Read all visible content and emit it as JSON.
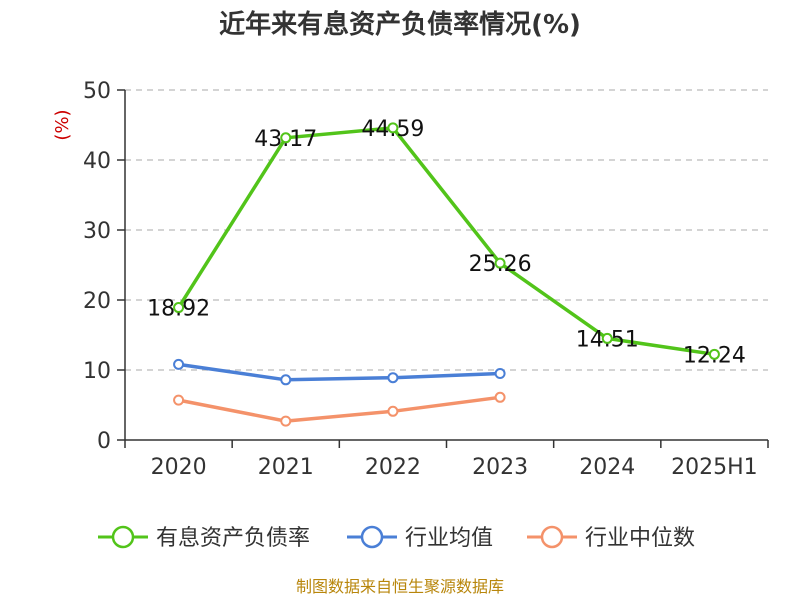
{
  "chart_data": {
    "type": "line",
    "title": "近年来有息资产负债率情况(%)",
    "unit_label": "(%)",
    "categories": [
      "2020",
      "2021",
      "2022",
      "2023",
      "2024",
      "2025H1"
    ],
    "yticks": [
      "0",
      "10",
      "20",
      "30",
      "40",
      "50"
    ],
    "ylim": [
      0,
      50
    ],
    "grid": true,
    "legend_position": "bottom",
    "series": [
      {
        "name": "有息资产负债率",
        "color": "#52c41a",
        "values": [
          18.92,
          43.17,
          44.59,
          25.26,
          14.51,
          12.24
        ],
        "labels": [
          "18.92",
          "43.17",
          "44.59",
          "25.26",
          "14.51",
          "12.24"
        ]
      },
      {
        "name": "行业均值",
        "color": "#4a7fd6",
        "values": [
          10.8,
          8.6,
          8.9,
          9.5,
          null,
          null
        ]
      },
      {
        "name": "行业中位数",
        "color": "#f4926a",
        "values": [
          5.7,
          2.7,
          4.1,
          6.1,
          null,
          null
        ]
      }
    ],
    "source": "制图数据来自恒生聚源数据库"
  }
}
